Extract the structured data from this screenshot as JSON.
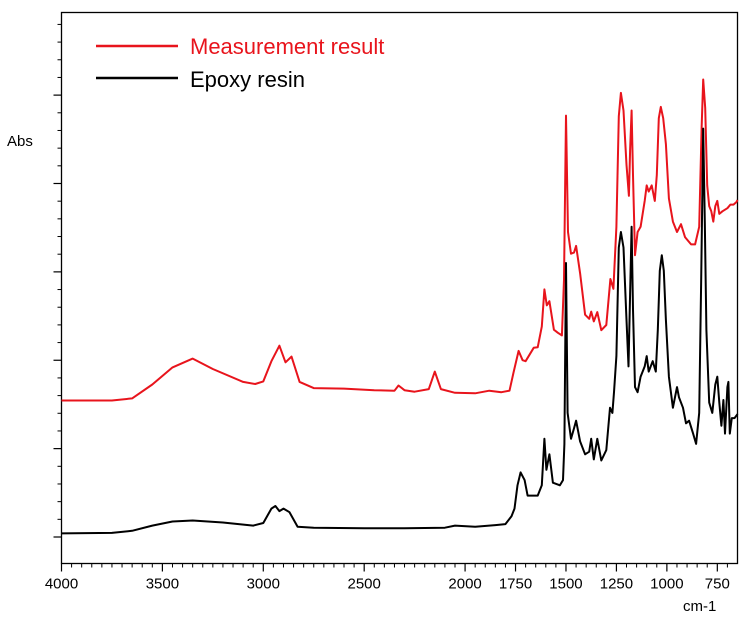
{
  "chart_data": {
    "type": "line",
    "title": "",
    "xlabel": "cm-1",
    "ylabel": "Abs",
    "xlim": [
      4000,
      650
    ],
    "x_reversed": true,
    "ylim": [
      0,
      1
    ],
    "y_tick_labels_shown": false,
    "grid": false,
    "legend_position": "top-left",
    "x_ticks": [
      4000,
      3500,
      3000,
      2500,
      2000,
      1750,
      1500,
      1250,
      1000,
      750
    ],
    "x_tick_labels": [
      "4000",
      "3500",
      "3000",
      "2500",
      "2000",
      "1750",
      "1500",
      "1250",
      "1000",
      "750"
    ],
    "series": [
      {
        "name": "Measurement result",
        "color": "#e8141c",
        "points": [
          [
            4000,
            0.264
          ],
          [
            3750,
            0.264
          ],
          [
            3650,
            0.268
          ],
          [
            3550,
            0.295
          ],
          [
            3450,
            0.328
          ],
          [
            3350,
            0.345
          ],
          [
            3250,
            0.325
          ],
          [
            3100,
            0.3
          ],
          [
            3040,
            0.296
          ],
          [
            3000,
            0.301
          ],
          [
            2960,
            0.34
          ],
          [
            2920,
            0.37
          ],
          [
            2890,
            0.338
          ],
          [
            2860,
            0.349
          ],
          [
            2820,
            0.3
          ],
          [
            2750,
            0.288
          ],
          [
            2600,
            0.287
          ],
          [
            2450,
            0.284
          ],
          [
            2350,
            0.283
          ],
          [
            2330,
            0.293
          ],
          [
            2300,
            0.284
          ],
          [
            2250,
            0.281
          ],
          [
            2180,
            0.286
          ],
          [
            2150,
            0.32
          ],
          [
            2120,
            0.286
          ],
          [
            2050,
            0.279
          ],
          [
            1950,
            0.278
          ],
          [
            1880,
            0.283
          ],
          [
            1820,
            0.28
          ],
          [
            1780,
            0.283
          ],
          [
            1760,
            0.318
          ],
          [
            1735,
            0.36
          ],
          [
            1715,
            0.342
          ],
          [
            1700,
            0.34
          ],
          [
            1660,
            0.366
          ],
          [
            1640,
            0.367
          ],
          [
            1620,
            0.407
          ],
          [
            1607,
            0.479
          ],
          [
            1595,
            0.448
          ],
          [
            1582,
            0.456
          ],
          [
            1560,
            0.401
          ],
          [
            1540,
            0.395
          ],
          [
            1520,
            0.39
          ],
          [
            1510,
            0.497
          ],
          [
            1500,
            0.815
          ],
          [
            1490,
            0.59
          ],
          [
            1475,
            0.548
          ],
          [
            1460,
            0.55
          ],
          [
            1450,
            0.563
          ],
          [
            1430,
            0.51
          ],
          [
            1405,
            0.43
          ],
          [
            1385,
            0.422
          ],
          [
            1375,
            0.436
          ],
          [
            1362,
            0.417
          ],
          [
            1345,
            0.435
          ],
          [
            1325,
            0.4
          ],
          [
            1300,
            0.41
          ],
          [
            1280,
            0.499
          ],
          [
            1265,
            0.48
          ],
          [
            1250,
            0.6
          ],
          [
            1238,
            0.814
          ],
          [
            1228,
            0.859
          ],
          [
            1215,
            0.825
          ],
          [
            1200,
            0.72
          ],
          [
            1188,
            0.66
          ],
          [
            1182,
            0.748
          ],
          [
            1175,
            0.825
          ],
          [
            1168,
            0.7
          ],
          [
            1158,
            0.545
          ],
          [
            1145,
            0.59
          ],
          [
            1130,
            0.6
          ],
          [
            1110,
            0.65
          ],
          [
            1100,
            0.68
          ],
          [
            1090,
            0.668
          ],
          [
            1075,
            0.68
          ],
          [
            1060,
            0.65
          ],
          [
            1050,
            0.7
          ],
          [
            1040,
            0.81
          ],
          [
            1030,
            0.832
          ],
          [
            1018,
            0.81
          ],
          [
            1005,
            0.76
          ],
          [
            990,
            0.655
          ],
          [
            970,
            0.61
          ],
          [
            950,
            0.59
          ],
          [
            930,
            0.605
          ],
          [
            910,
            0.58
          ],
          [
            880,
            0.566
          ],
          [
            860,
            0.566
          ],
          [
            840,
            0.6
          ],
          [
            828,
            0.79
          ],
          [
            820,
            0.885
          ],
          [
            810,
            0.83
          ],
          [
            800,
            0.68
          ],
          [
            790,
            0.64
          ],
          [
            780,
            0.63
          ],
          [
            770,
            0.61
          ],
          [
            760,
            0.64
          ],
          [
            750,
            0.65
          ],
          [
            740,
            0.625
          ],
          [
            725,
            0.63
          ],
          [
            700,
            0.636
          ],
          [
            685,
            0.643
          ],
          [
            670,
            0.643
          ],
          [
            655,
            0.648
          ],
          [
            650,
            0.652
          ]
        ]
      },
      {
        "name": "Epoxy resin",
        "color": "#000000",
        "points": [
          [
            4000,
            0.007
          ],
          [
            3750,
            0.008
          ],
          [
            3650,
            0.012
          ],
          [
            3550,
            0.022
          ],
          [
            3450,
            0.03
          ],
          [
            3350,
            0.032
          ],
          [
            3200,
            0.028
          ],
          [
            3050,
            0.022
          ],
          [
            3000,
            0.027
          ],
          [
            2960,
            0.055
          ],
          [
            2940,
            0.06
          ],
          [
            2920,
            0.05
          ],
          [
            2900,
            0.055
          ],
          [
            2870,
            0.048
          ],
          [
            2830,
            0.02
          ],
          [
            2750,
            0.018
          ],
          [
            2500,
            0.017
          ],
          [
            2300,
            0.017
          ],
          [
            2100,
            0.018
          ],
          [
            2050,
            0.022
          ],
          [
            1950,
            0.02
          ],
          [
            1850,
            0.023
          ],
          [
            1800,
            0.025
          ],
          [
            1770,
            0.04
          ],
          [
            1755,
            0.055
          ],
          [
            1740,
            0.1
          ],
          [
            1725,
            0.125
          ],
          [
            1705,
            0.11
          ],
          [
            1690,
            0.08
          ],
          [
            1640,
            0.08
          ],
          [
            1620,
            0.1
          ],
          [
            1607,
            0.19
          ],
          [
            1597,
            0.13
          ],
          [
            1582,
            0.16
          ],
          [
            1565,
            0.105
          ],
          [
            1530,
            0.1
          ],
          [
            1515,
            0.11
          ],
          [
            1508,
            0.18
          ],
          [
            1500,
            0.53
          ],
          [
            1492,
            0.24
          ],
          [
            1475,
            0.19
          ],
          [
            1460,
            0.21
          ],
          [
            1450,
            0.225
          ],
          [
            1430,
            0.185
          ],
          [
            1405,
            0.16
          ],
          [
            1385,
            0.165
          ],
          [
            1375,
            0.19
          ],
          [
            1362,
            0.15
          ],
          [
            1345,
            0.19
          ],
          [
            1325,
            0.148
          ],
          [
            1300,
            0.168
          ],
          [
            1282,
            0.25
          ],
          [
            1270,
            0.24
          ],
          [
            1262,
            0.28
          ],
          [
            1250,
            0.35
          ],
          [
            1238,
            0.56
          ],
          [
            1228,
            0.59
          ],
          [
            1215,
            0.56
          ],
          [
            1200,
            0.42
          ],
          [
            1190,
            0.33
          ],
          [
            1182,
            0.47
          ],
          [
            1175,
            0.6
          ],
          [
            1168,
            0.44
          ],
          [
            1158,
            0.29
          ],
          [
            1145,
            0.28
          ],
          [
            1130,
            0.31
          ],
          [
            1110,
            0.33
          ],
          [
            1100,
            0.35
          ],
          [
            1090,
            0.32
          ],
          [
            1070,
            0.34
          ],
          [
            1055,
            0.32
          ],
          [
            1045,
            0.4
          ],
          [
            1035,
            0.515
          ],
          [
            1025,
            0.545
          ],
          [
            1015,
            0.515
          ],
          [
            1005,
            0.42
          ],
          [
            990,
            0.31
          ],
          [
            970,
            0.25
          ],
          [
            950,
            0.29
          ],
          [
            940,
            0.27
          ],
          [
            920,
            0.25
          ],
          [
            905,
            0.22
          ],
          [
            890,
            0.225
          ],
          [
            870,
            0.2
          ],
          [
            855,
            0.18
          ],
          [
            840,
            0.24
          ],
          [
            830,
            0.5
          ],
          [
            820,
            0.79
          ],
          [
            812,
            0.61
          ],
          [
            804,
            0.4
          ],
          [
            790,
            0.26
          ],
          [
            775,
            0.24
          ],
          [
            760,
            0.295
          ],
          [
            750,
            0.31
          ],
          [
            740,
            0.26
          ],
          [
            730,
            0.215
          ],
          [
            720,
            0.265
          ],
          [
            712,
            0.2
          ],
          [
            700,
            0.29
          ],
          [
            695,
            0.3
          ],
          [
            688,
            0.2
          ],
          [
            678,
            0.23
          ],
          [
            665,
            0.23
          ],
          [
            655,
            0.235
          ],
          [
            650,
            0.238
          ]
        ]
      }
    ]
  }
}
